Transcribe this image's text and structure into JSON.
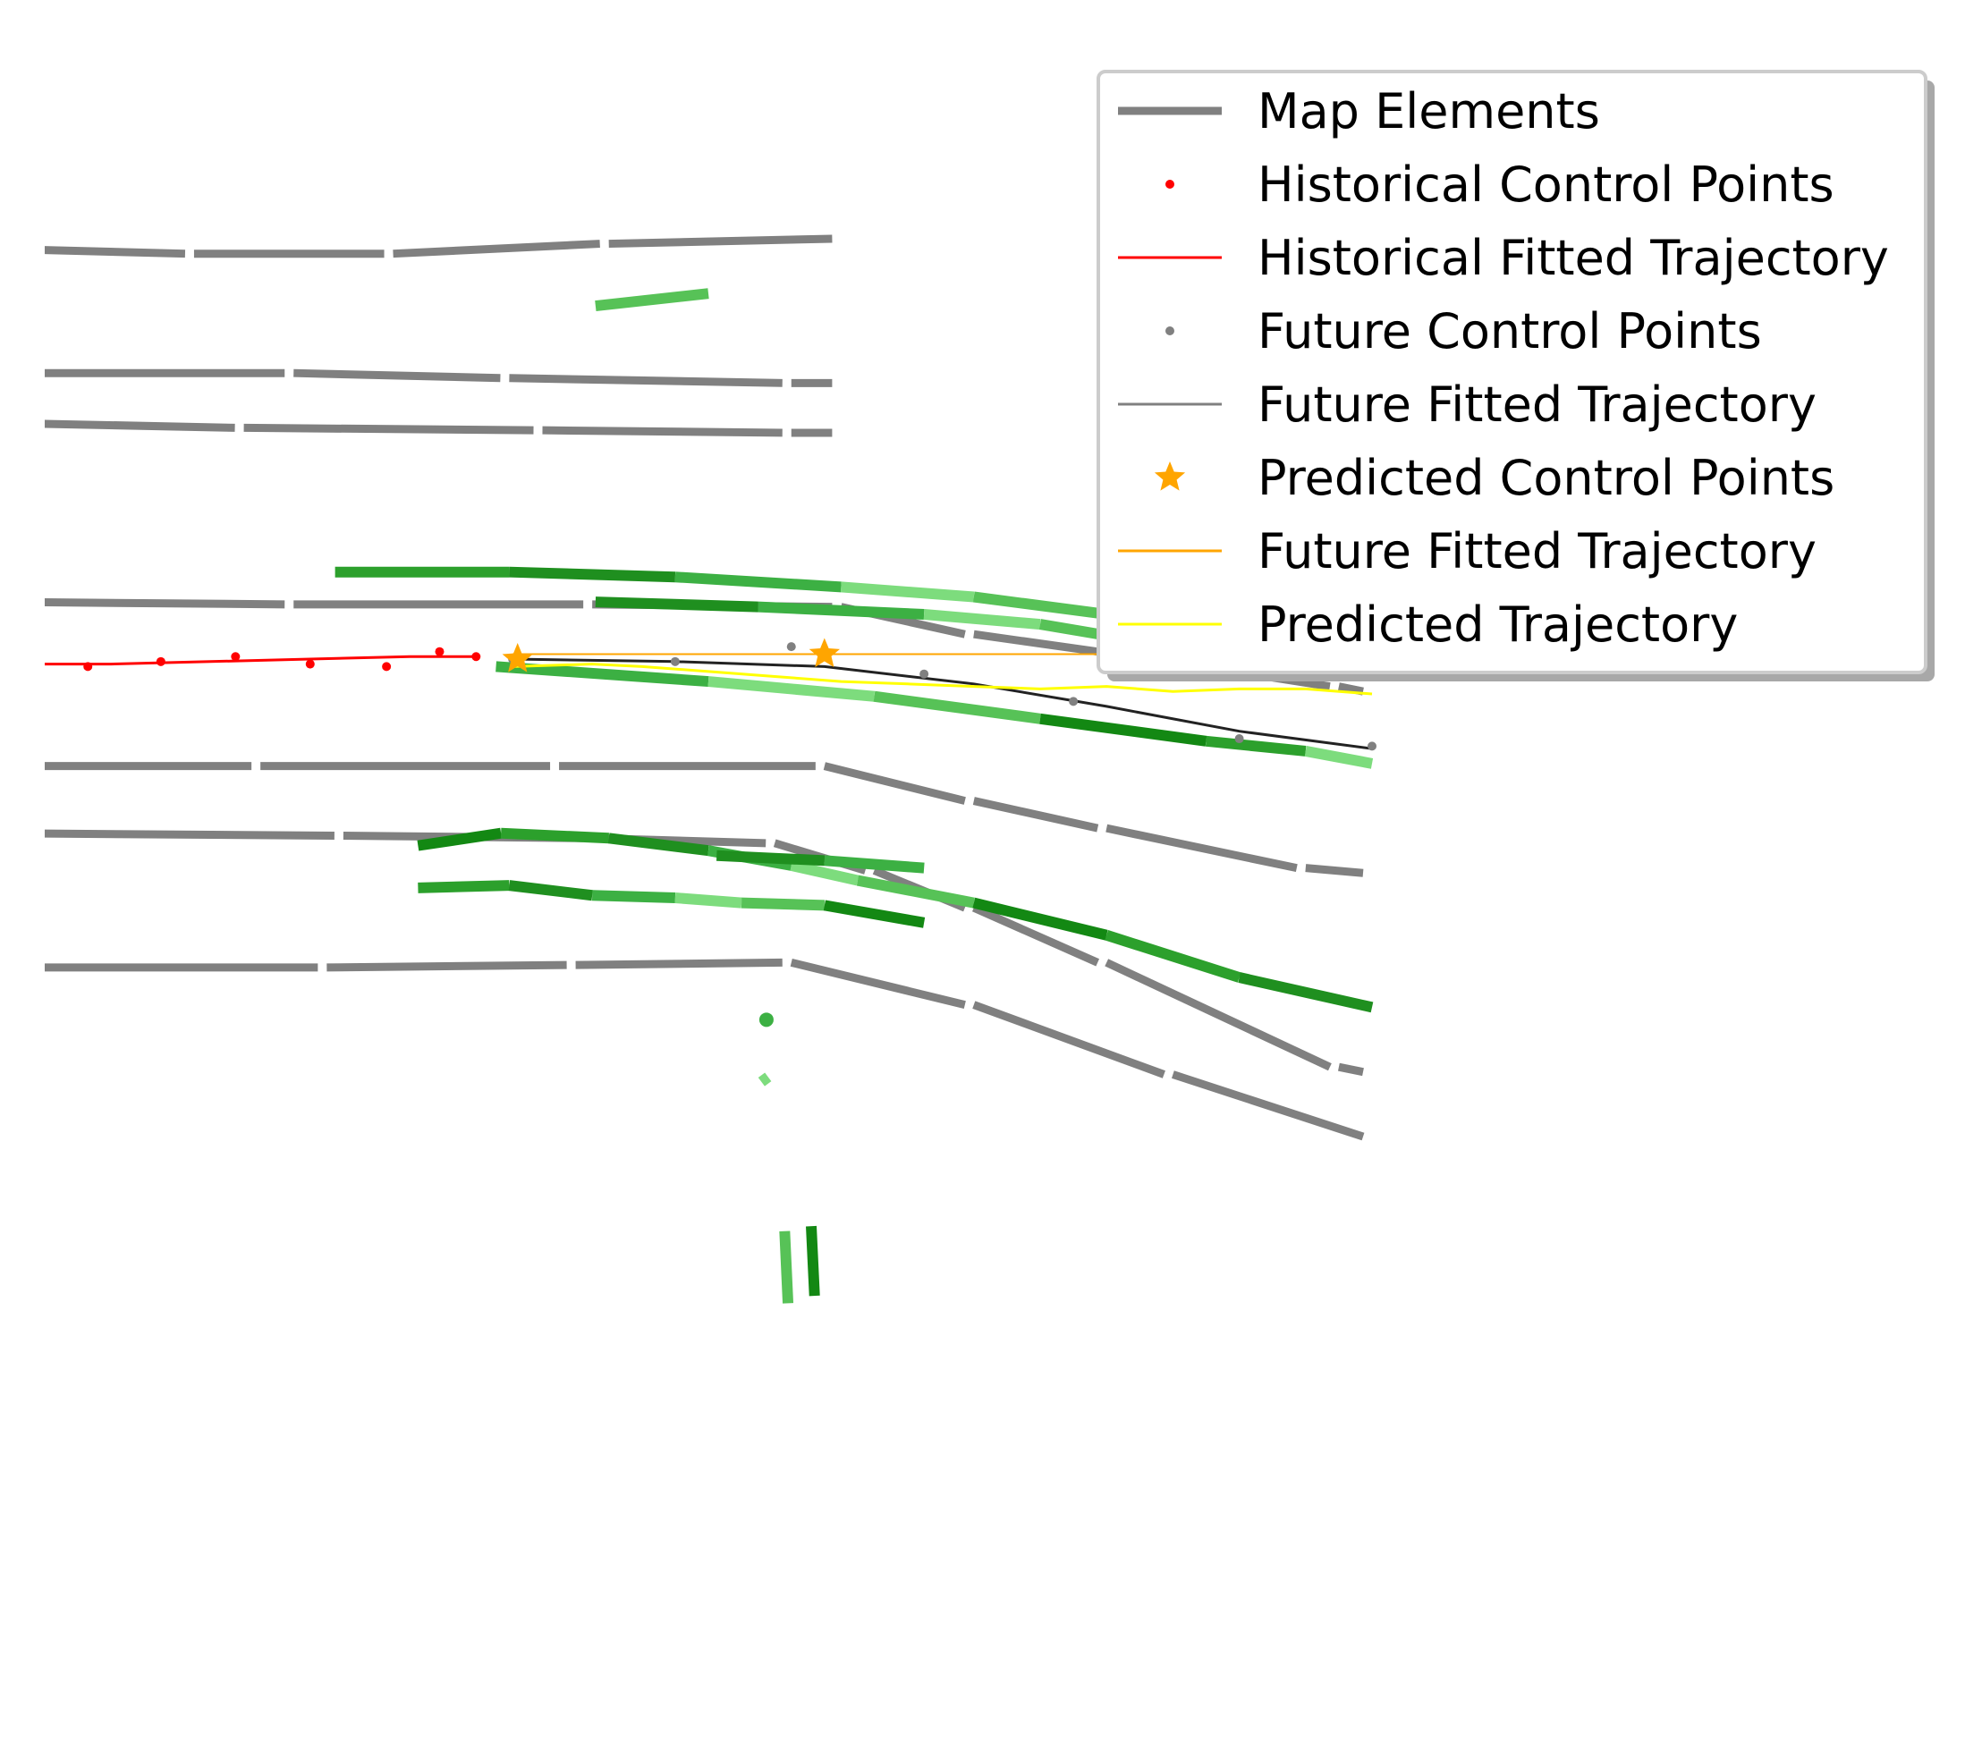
{
  "chart_data": {
    "type": "line",
    "title": "",
    "xlabel": "",
    "ylabel": "",
    "axes_visible": false,
    "grid": false,
    "legend": {
      "placement": "top-right",
      "entries": [
        {
          "label": "Map Elements",
          "kind": "line",
          "color": "#808080"
        },
        {
          "label": "Historical Control Points",
          "kind": "point",
          "color": "#ff0000"
        },
        {
          "label": "Historical Fitted Trajectory",
          "kind": "line",
          "color": "#ff0000"
        },
        {
          "label": "Future Control Points",
          "kind": "point",
          "color": "#808080"
        },
        {
          "label": "Future Fitted Trajectory",
          "kind": "line",
          "color": "#808080"
        },
        {
          "label": "Predicted Control Points",
          "kind": "star",
          "color": "#ffa500"
        },
        {
          "label": "Future Fitted Trajectory",
          "kind": "line",
          "color": "#ffa500"
        },
        {
          "label": "Predicted Trajectory",
          "kind": "line",
          "color": "#ffff00"
        }
      ]
    },
    "xlim": [
      0,
      1000
    ],
    "ylim": [
      0,
      640
    ],
    "series": [
      {
        "name": "Map Elements",
        "role": "map",
        "color": "#808080",
        "polylines": [
          [
            [
              -30,
              540
            ],
            [
              90,
              538
            ],
            [
              210,
              538
            ],
            [
              340,
              542
            ],
            [
              480,
              544
            ]
          ],
          [
            [
              -30,
              490
            ],
            [
              150,
              490
            ],
            [
              280,
              488
            ],
            [
              450,
              486
            ],
            [
              480,
              486
            ]
          ],
          [
            [
              -30,
              470
            ],
            [
              120,
              468
            ],
            [
              300,
              467
            ],
            [
              450,
              466
            ],
            [
              480,
              466
            ]
          ],
          [
            [
              -30,
              398
            ],
            [
              150,
              397
            ],
            [
              330,
              397
            ],
            [
              480,
              396
            ],
            [
              560,
              385
            ],
            [
              640,
              378
            ],
            [
              780,
              364
            ],
            [
              800,
              362
            ]
          ],
          [
            [
              -30,
              332
            ],
            [
              130,
              332
            ],
            [
              310,
              332
            ],
            [
              470,
              332
            ],
            [
              560,
              318
            ],
            [
              640,
              307
            ],
            [
              760,
              291
            ],
            [
              800,
              289
            ]
          ],
          [
            [
              -30,
              305
            ],
            [
              180,
              304
            ],
            [
              330,
              303
            ],
            [
              440,
              301
            ],
            [
              500,
              290
            ],
            [
              560,
              275
            ],
            [
              640,
              253
            ],
            [
              780,
              211
            ],
            [
              800,
              209
            ]
          ],
          [
            [
              -30,
              251
            ],
            [
              170,
              251
            ],
            [
              320,
              252
            ],
            [
              450,
              253
            ],
            [
              560,
              236
            ],
            [
              680,
              208
            ],
            [
              800,
              183
            ]
          ]
        ]
      },
      {
        "name": "Historical Fitted Trajectory",
        "role": "hist_line",
        "color": "#ff0000",
        "points": [
          [
            -18,
            373
          ],
          [
            40,
            373
          ],
          [
            100,
            374
          ],
          [
            160,
            375
          ],
          [
            220,
            376
          ],
          [
            260,
            376
          ]
        ]
      },
      {
        "name": "Historical Control Points",
        "role": "hist_pts",
        "color": "#ff0000",
        "points": [
          [
            -18,
            373
          ],
          [
            26,
            372
          ],
          [
            70,
            374
          ],
          [
            115,
            376
          ],
          [
            160,
            373
          ],
          [
            206,
            372
          ],
          [
            238,
            378
          ],
          [
            260,
            376
          ]
        ]
      },
      {
        "name": "Future Fitted Trajectory",
        "role": "future_line",
        "color": "#808080",
        "points": [
          [
            282,
            375
          ],
          [
            380,
            374
          ],
          [
            470,
            372
          ],
          [
            560,
            365
          ],
          [
            640,
            356
          ],
          [
            720,
            346
          ],
          [
            800,
            339
          ]
        ]
      },
      {
        "name": "Future Control Points",
        "role": "future_pts",
        "color": "#808080",
        "points": [
          [
            282,
            375
          ],
          [
            380,
            374
          ],
          [
            450,
            380
          ],
          [
            530,
            369
          ],
          [
            620,
            358
          ],
          [
            720,
            343
          ],
          [
            800,
            340
          ]
        ]
      },
      {
        "name": "Predicted Control Points",
        "role": "pred_stars",
        "color": "#ffa500",
        "points": [
          [
            285,
            375
          ],
          [
            470,
            377
          ],
          [
            767,
            377
          ]
        ]
      },
      {
        "name": "Future Fitted Trajectory",
        "role": "orange_line",
        "color": "#ffa500",
        "points": [
          [
            282,
            377
          ],
          [
            470,
            377
          ],
          [
            767,
            377
          ],
          [
            800,
            377
          ]
        ]
      },
      {
        "name": "Predicted Trajectory",
        "role": "pred_line",
        "color": "#ffff00",
        "points": [
          [
            282,
            372
          ],
          [
            330,
            373
          ],
          [
            360,
            372
          ],
          [
            400,
            370
          ],
          [
            440,
            368
          ],
          [
            480,
            366
          ],
          [
            520,
            365
          ],
          [
            560,
            364
          ],
          [
            600,
            363
          ],
          [
            640,
            364
          ],
          [
            680,
            362
          ],
          [
            720,
            363
          ],
          [
            760,
            363
          ],
          [
            800,
            361
          ]
        ]
      },
      {
        "name": "",
        "role": "lanes",
        "color": "#2ca02c",
        "polylines": [
          [
            [
              175,
              410
            ],
            [
              280,
              410
            ],
            [
              380,
              408
            ],
            [
              480,
              404
            ],
            [
              560,
              400
            ],
            [
              640,
              393
            ],
            [
              720,
              386
            ],
            [
              800,
              380
            ]
          ],
          [
            [
              332,
              398
            ],
            [
              430,
              396
            ],
            [
              530,
              393
            ],
            [
              600,
              389
            ],
            [
              680,
              380
            ],
            [
              760,
              373
            ],
            [
              800,
              370
            ]
          ],
          [
            [
              272,
              372
            ],
            [
              400,
              366
            ],
            [
              500,
              360
            ],
            [
              600,
              351
            ],
            [
              700,
              342
            ],
            [
              760,
              338
            ]
          ],
          [
            [
              760,
              338
            ],
            [
              800,
              333
            ]
          ],
          [
            [
              332,
              517
            ],
            [
              400,
              522
            ]
          ],
          [
            [
              225,
              300
            ],
            [
              275,
              305
            ],
            [
              340,
              303
            ],
            [
              400,
              298
            ],
            [
              450,
              292
            ],
            [
              490,
              286
            ],
            [
              560,
              277
            ],
            [
              640,
              264
            ],
            [
              720,
              247
            ],
            [
              800,
              235
            ]
          ],
          [
            [
              225,
              283
            ],
            [
              280,
              284
            ],
            [
              330,
              280
            ],
            [
              380,
              279
            ],
            [
              420,
              277
            ],
            [
              470,
              276
            ],
            [
              530,
              269
            ]
          ],
          [
            [
              405,
              296
            ],
            [
              470,
              294
            ],
            [
              530,
              291
            ]
          ],
          [
            [
              435,
              230
            ]
          ],
          [
            [
              432,
              205
            ],
            [
              436,
              207
            ]
          ],
          [
            [
              446,
              145
            ],
            [
              448,
              116
            ]
          ],
          [
            [
              462,
              147
            ],
            [
              464,
              119
            ]
          ]
        ]
      }
    ]
  }
}
